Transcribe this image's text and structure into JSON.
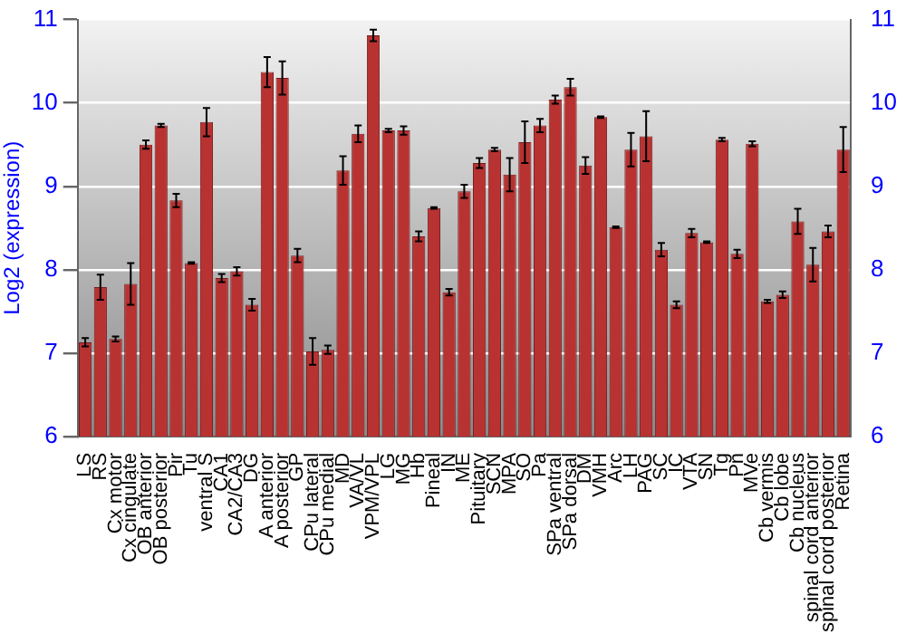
{
  "chart_data": {
    "type": "bar",
    "ylabel": "Log2 (expression)",
    "categories": [
      "LS",
      "RS",
      "Cx motor",
      "Cx cingulate",
      "OB anterior",
      "OB posterior",
      "Pir",
      "Tu",
      "ventral S",
      "CA1",
      "CA2/CA3",
      "DG",
      "A anterior",
      "A posterior",
      "GP",
      "CPu lateral",
      "CPu medial",
      "MD",
      "VA/VL",
      "VPM/VPL",
      "LG",
      "MG",
      "Hb",
      "Pineal",
      "IN",
      "ME",
      "Pituitary",
      "SCN",
      "MPA",
      "SO",
      "Pa",
      "SPa ventral",
      "SPa dorsal",
      "DM",
      "VMH",
      "Arc",
      "LH",
      "PAG",
      "SC",
      "IC",
      "VTA",
      "SN",
      "Tg",
      "Pn",
      "MVe",
      "Cb vermis",
      "Cb lobe",
      "Cb nucleus",
      "spinal cord anterior",
      "spinal cord posterior",
      "Retina"
    ],
    "values": [
      7.13,
      7.79,
      7.17,
      7.83,
      9.5,
      9.73,
      8.83,
      8.08,
      9.77,
      7.9,
      7.98,
      7.58,
      10.37,
      10.3,
      8.17,
      7.02,
      7.04,
      9.19,
      9.63,
      10.81,
      9.67,
      9.67,
      8.4,
      8.74,
      7.73,
      8.94,
      9.28,
      9.44,
      9.14,
      9.53,
      9.73,
      10.04,
      10.19,
      9.25,
      9.83,
      8.51,
      9.44,
      9.6,
      8.24,
      7.58,
      8.44,
      8.33,
      9.56,
      8.19,
      9.51,
      7.62,
      7.7,
      8.58,
      8.06,
      8.46,
      9.44
    ],
    "errors": [
      0.05,
      0.15,
      0.03,
      0.25,
      0.05,
      0.02,
      0.08,
      0.01,
      0.17,
      0.05,
      0.05,
      0.07,
      0.18,
      0.2,
      0.08,
      0.16,
      0.05,
      0.17,
      0.1,
      0.07,
      0.02,
      0.05,
      0.06,
      0.01,
      0.04,
      0.08,
      0.06,
      0.02,
      0.2,
      0.25,
      0.08,
      0.05,
      0.1,
      0.1,
      0.01,
      0.01,
      0.2,
      0.3,
      0.08,
      0.04,
      0.05,
      0.01,
      0.02,
      0.05,
      0.03,
      0.02,
      0.04,
      0.15,
      0.2,
      0.07,
      0.27
    ],
    "color": "#b83232",
    "ylim": [
      6,
      11
    ],
    "yticks": [
      6,
      7,
      8,
      9,
      10,
      11
    ],
    "y2lim": [
      6,
      11
    ],
    "y2ticks": [
      6,
      7,
      8,
      9,
      10,
      11
    ],
    "grid": "y",
    "legend": false
  }
}
